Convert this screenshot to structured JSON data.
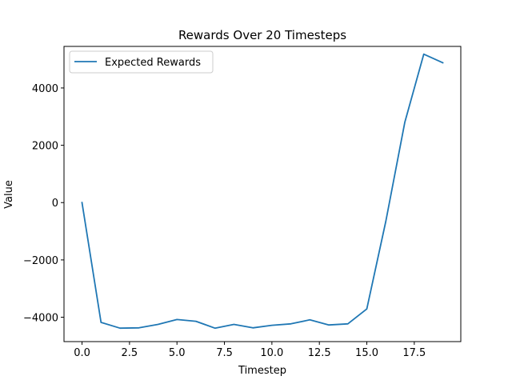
{
  "chart_data": {
    "type": "line",
    "title": "Rewards Over 20 Timesteps",
    "xlabel": "Timestep",
    "ylabel": "Value",
    "xlim": [
      -0.95,
      19.95
    ],
    "ylim": [
      -4850,
      5450
    ],
    "xticks": [
      0.0,
      2.5,
      5.0,
      7.5,
      10.0,
      12.5,
      15.0,
      17.5
    ],
    "xtick_labels": [
      "0.0",
      "2.5",
      "5.0",
      "7.5",
      "10.0",
      "12.5",
      "15.0",
      "17.5"
    ],
    "yticks": [
      -4000,
      -2000,
      0,
      2000,
      4000
    ],
    "ytick_labels": [
      "−4000",
      "−2000",
      "0",
      "2000",
      "4000"
    ],
    "grid": false,
    "legend_position": "upper-left",
    "series": [
      {
        "name": "Expected Rewards",
        "color": "#1f77b4",
        "x": [
          0,
          1,
          2,
          3,
          4,
          5,
          6,
          7,
          8,
          9,
          10,
          11,
          12,
          13,
          14,
          15,
          16,
          17,
          18,
          19
        ],
        "y": [
          0,
          -4180,
          -4380,
          -4370,
          -4250,
          -4080,
          -4140,
          -4380,
          -4250,
          -4370,
          -4280,
          -4230,
          -4090,
          -4270,
          -4230,
          -3710,
          -650,
          2800,
          5180,
          4880
        ]
      }
    ]
  }
}
